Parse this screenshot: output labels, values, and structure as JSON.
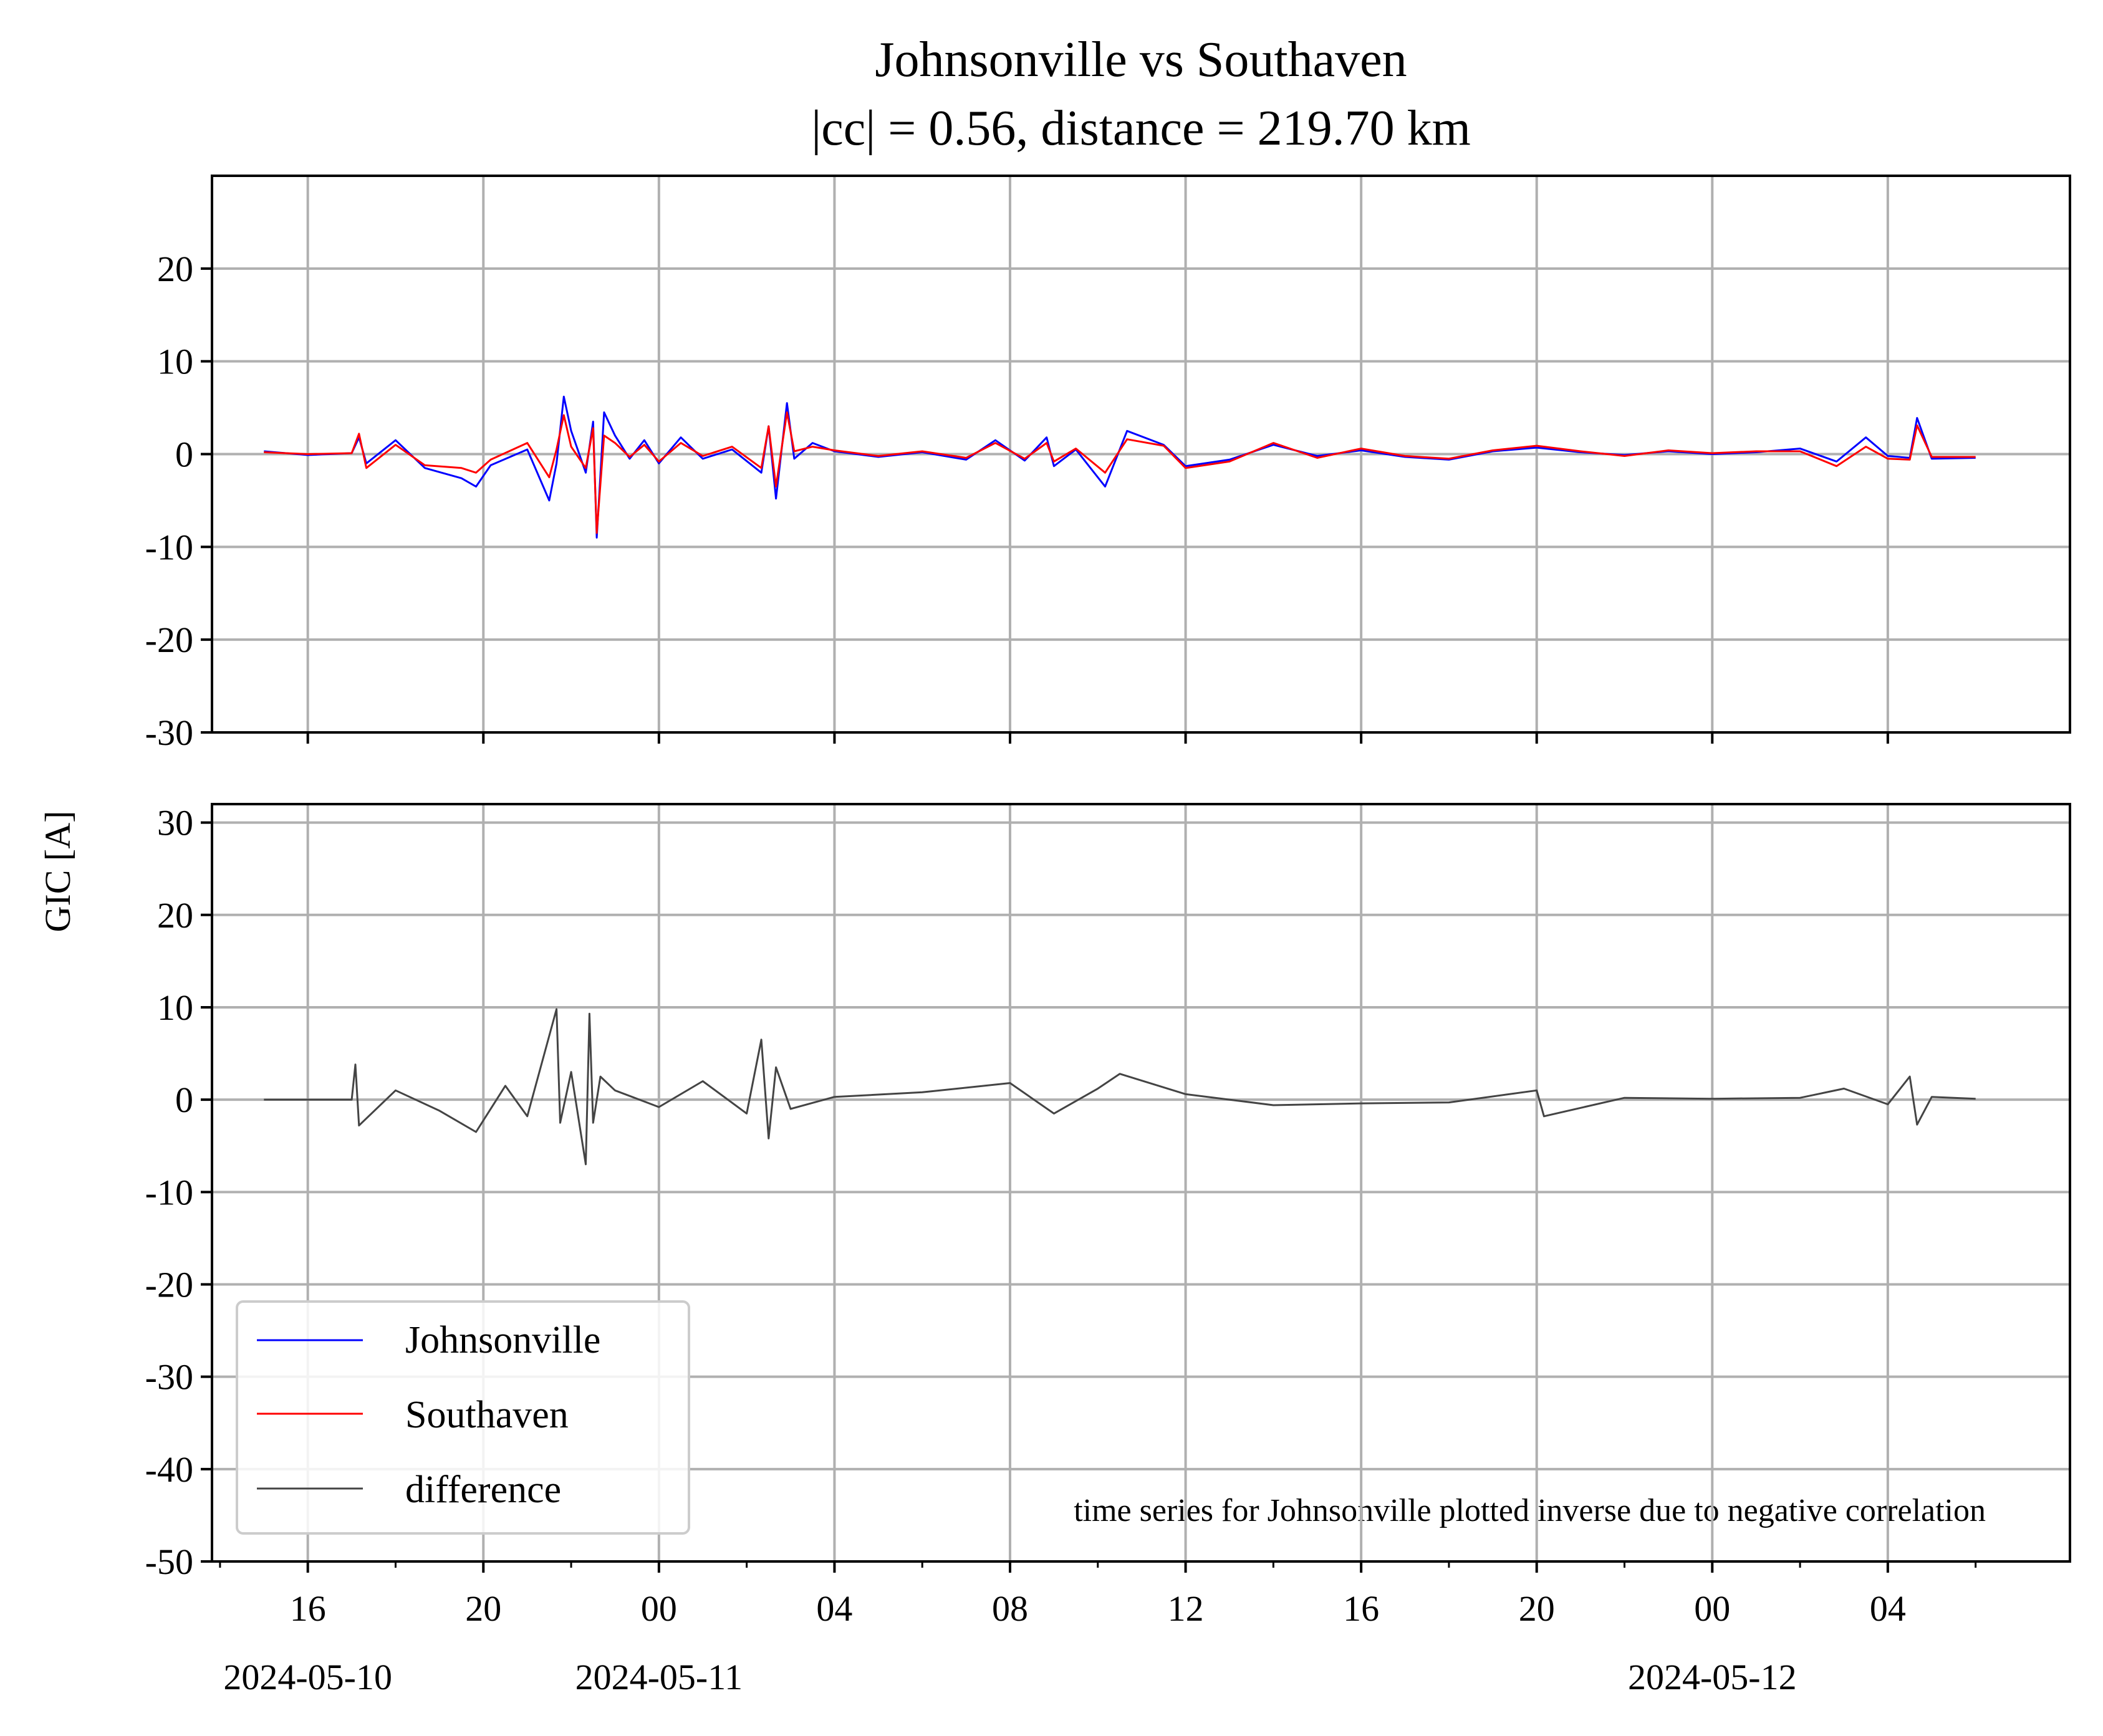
{
  "chart_data": {
    "type": "line",
    "title": "Johnsonville vs Southaven",
    "subtitle": "|cc| = 0.56, distance = 219.70 km",
    "ylabel": "GIC [A]",
    "annotation": "time series for Johnsonville plotted inverse due to negative correlation",
    "grid": true,
    "legend_position": "lower-left",
    "x_range": [
      "2024-05-10 13:49",
      "2024-05-12 08:09"
    ],
    "x_ticks": [
      {
        "t": "2024-05-10 16:00",
        "label": "16",
        "date": "2024-05-10"
      },
      {
        "t": "2024-05-10 20:00",
        "label": "20",
        "date": ""
      },
      {
        "t": "2024-05-11 00:00",
        "label": "00",
        "date": "2024-05-11"
      },
      {
        "t": "2024-05-11 04:00",
        "label": "04",
        "date": ""
      },
      {
        "t": "2024-05-11 08:00",
        "label": "08",
        "date": ""
      },
      {
        "t": "2024-05-11 12:00",
        "label": "12",
        "date": ""
      },
      {
        "t": "2024-05-11 16:00",
        "label": "16",
        "date": ""
      },
      {
        "t": "2024-05-11 20:00",
        "label": "20",
        "date": ""
      },
      {
        "t": "2024-05-12 00:00",
        "label": "00",
        "date": "2024-05-12"
      },
      {
        "t": "2024-05-12 04:00",
        "label": "04",
        "date": ""
      }
    ],
    "panels": [
      {
        "ylim": [
          -30,
          30
        ],
        "yticks": [
          -30,
          -20,
          -10,
          0,
          10,
          20
        ],
        "series": [
          {
            "name": "Johnsonville",
            "color": "#0000ff",
            "x": [
              "2024-05-10 15:00",
              "2024-05-10 16:00",
              "2024-05-10 17:00",
              "2024-05-10 17:10",
              "2024-05-10 17:20",
              "2024-05-10 18:00",
              "2024-05-10 18:40",
              "2024-05-10 19:30",
              "2024-05-10 19:50",
              "2024-05-10 20:10",
              "2024-05-10 21:00",
              "2024-05-10 21:30",
              "2024-05-10 21:40",
              "2024-05-10 21:50",
              "2024-05-10 22:00",
              "2024-05-10 22:20",
              "2024-05-10 22:30",
              "2024-05-10 22:35",
              "2024-05-10 22:45",
              "2024-05-10 23:00",
              "2024-05-10 23:20",
              "2024-05-10 23:40",
              "2024-05-11 00:00",
              "2024-05-11 00:30",
              "2024-05-11 01:00",
              "2024-05-11 01:40",
              "2024-05-11 02:20",
              "2024-05-11 02:30",
              "2024-05-11 02:40",
              "2024-05-11 02:55",
              "2024-05-11 03:05",
              "2024-05-11 03:30",
              "2024-05-11 04:00",
              "2024-05-11 05:00",
              "2024-05-11 06:00",
              "2024-05-11 07:00",
              "2024-05-11 07:40",
              "2024-05-11 08:20",
              "2024-05-11 08:50",
              "2024-05-11 09:00",
              "2024-05-11 09:30",
              "2024-05-11 10:10",
              "2024-05-11 10:40",
              "2024-05-11 11:30",
              "2024-05-11 12:00",
              "2024-05-11 13:00",
              "2024-05-11 14:00",
              "2024-05-11 15:00",
              "2024-05-11 16:00",
              "2024-05-11 17:00",
              "2024-05-11 18:00",
              "2024-05-11 19:00",
              "2024-05-11 20:00",
              "2024-05-11 21:00",
              "2024-05-11 22:00",
              "2024-05-11 23:00",
              "2024-05-12 00:00",
              "2024-05-12 01:00",
              "2024-05-12 02:00",
              "2024-05-12 02:50",
              "2024-05-12 03:30",
              "2024-05-12 04:00",
              "2024-05-12 04:30",
              "2024-05-12 04:40",
              "2024-05-12 05:00",
              "2024-05-12 06:00"
            ],
            "values": [
              0.3,
              -0.1,
              0.1,
              1.8,
              -1.0,
              1.5,
              -1.5,
              -2.6,
              -3.5,
              -1.2,
              0.5,
              -5.0,
              -1.0,
              6.2,
              2.5,
              -2.0,
              3.5,
              -9.0,
              4.5,
              2.0,
              -0.5,
              1.5,
              -1.0,
              1.8,
              -0.5,
              0.5,
              -2.0,
              3.0,
              -4.8,
              5.5,
              -0.5,
              1.2,
              0.3,
              -0.3,
              0.2,
              -0.6,
              1.5,
              -0.7,
              1.8,
              -1.3,
              0.5,
              -3.5,
              2.5,
              1.0,
              -1.3,
              -0.6,
              1.0,
              -0.2,
              0.4,
              -0.3,
              -0.6,
              0.3,
              0.7,
              0.2,
              -0.1,
              0.3,
              0.0,
              0.2,
              0.6,
              -0.8,
              1.8,
              -0.2,
              -0.4,
              3.9,
              -0.5,
              -0.4
            ]
          },
          {
            "name": "Southaven",
            "color": "#ff0000",
            "x": [
              "2024-05-10 15:00",
              "2024-05-10 16:00",
              "2024-05-10 17:00",
              "2024-05-10 17:10",
              "2024-05-10 17:20",
              "2024-05-10 18:00",
              "2024-05-10 18:40",
              "2024-05-10 19:30",
              "2024-05-10 19:50",
              "2024-05-10 20:10",
              "2024-05-10 21:00",
              "2024-05-10 21:30",
              "2024-05-10 21:40",
              "2024-05-10 21:50",
              "2024-05-10 22:00",
              "2024-05-10 22:20",
              "2024-05-10 22:30",
              "2024-05-10 22:35",
              "2024-05-10 22:45",
              "2024-05-10 23:00",
              "2024-05-10 23:20",
              "2024-05-10 23:40",
              "2024-05-11 00:00",
              "2024-05-11 00:30",
              "2024-05-11 01:00",
              "2024-05-11 01:40",
              "2024-05-11 02:20",
              "2024-05-11 02:30",
              "2024-05-11 02:40",
              "2024-05-11 02:55",
              "2024-05-11 03:05",
              "2024-05-11 03:30",
              "2024-05-11 04:00",
              "2024-05-11 05:00",
              "2024-05-11 06:00",
              "2024-05-11 07:00",
              "2024-05-11 07:40",
              "2024-05-11 08:20",
              "2024-05-11 08:50",
              "2024-05-11 09:00",
              "2024-05-11 09:30",
              "2024-05-11 10:10",
              "2024-05-11 10:40",
              "2024-05-11 11:30",
              "2024-05-11 12:00",
              "2024-05-11 13:00",
              "2024-05-11 14:00",
              "2024-05-11 15:00",
              "2024-05-11 16:00",
              "2024-05-11 17:00",
              "2024-05-11 18:00",
              "2024-05-11 19:00",
              "2024-05-11 20:00",
              "2024-05-11 21:00",
              "2024-05-11 22:00",
              "2024-05-11 23:00",
              "2024-05-12 00:00",
              "2024-05-12 01:00",
              "2024-05-12 02:00",
              "2024-05-12 02:50",
              "2024-05-12 03:30",
              "2024-05-12 04:00",
              "2024-05-12 04:30",
              "2024-05-12 04:40",
              "2024-05-12 05:00",
              "2024-05-12 06:00"
            ],
            "values": [
              0.2,
              0.0,
              0.1,
              2.2,
              -1.5,
              1.0,
              -1.2,
              -1.5,
              -2.0,
              -0.6,
              1.2,
              -2.5,
              0.5,
              4.2,
              0.8,
              -1.5,
              2.8,
              -8.5,
              2.0,
              1.2,
              -0.3,
              1.0,
              -0.8,
              1.2,
              -0.2,
              0.8,
              -1.5,
              3.0,
              -3.5,
              4.5,
              0.3,
              0.8,
              0.4,
              -0.2,
              0.3,
              -0.4,
              1.2,
              -0.5,
              1.2,
              -0.8,
              0.6,
              -2.0,
              1.6,
              0.9,
              -1.5,
              -0.8,
              1.2,
              -0.4,
              0.6,
              -0.2,
              -0.5,
              0.4,
              0.9,
              0.3,
              -0.2,
              0.4,
              0.1,
              0.3,
              0.3,
              -1.3,
              0.8,
              -0.5,
              -0.6,
              3.1,
              -0.3,
              -0.3
            ]
          }
        ]
      },
      {
        "ylim": [
          -50,
          32
        ],
        "yticks": [
          -50,
          -40,
          -30,
          -20,
          -10,
          0,
          10,
          20,
          30
        ],
        "series": [
          {
            "name": "difference",
            "color": "#444444",
            "x": [
              "2024-05-10 15:00",
              "2024-05-10 17:00",
              "2024-05-10 17:05",
              "2024-05-10 17:10",
              "2024-05-10 18:00",
              "2024-05-10 19:00",
              "2024-05-10 19:50",
              "2024-05-10 20:30",
              "2024-05-10 21:00",
              "2024-05-10 21:40",
              "2024-05-10 21:45",
              "2024-05-10 22:00",
              "2024-05-10 22:20",
              "2024-05-10 22:25",
              "2024-05-10 22:30",
              "2024-05-10 22:40",
              "2024-05-10 23:00",
              "2024-05-11 00:00",
              "2024-05-11 01:00",
              "2024-05-11 02:00",
              "2024-05-11 02:20",
              "2024-05-11 02:30",
              "2024-05-11 02:40",
              "2024-05-11 03:00",
              "2024-05-11 04:00",
              "2024-05-11 06:00",
              "2024-05-11 08:00",
              "2024-05-11 09:00",
              "2024-05-11 10:00",
              "2024-05-11 10:30",
              "2024-05-11 12:00",
              "2024-05-11 14:00",
              "2024-05-11 16:00",
              "2024-05-11 18:00",
              "2024-05-11 20:00",
              "2024-05-11 20:10",
              "2024-05-11 22:00",
              "2024-05-12 00:00",
              "2024-05-12 02:00",
              "2024-05-12 03:00",
              "2024-05-12 04:00",
              "2024-05-12 04:30",
              "2024-05-12 04:40",
              "2024-05-12 05:00",
              "2024-05-12 06:00"
            ],
            "values": [
              0.0,
              0.0,
              3.8,
              -2.8,
              1.0,
              -1.2,
              -3.5,
              1.5,
              -1.8,
              9.8,
              -2.5,
              3.0,
              -7.0,
              9.3,
              -2.5,
              2.5,
              1.0,
              -0.8,
              2.0,
              -1.5,
              6.5,
              -4.2,
              3.5,
              -1.0,
              0.3,
              0.8,
              1.8,
              -1.5,
              1.2,
              2.8,
              0.6,
              -0.6,
              -0.4,
              -0.3,
              1.0,
              -1.8,
              0.2,
              0.1,
              0.2,
              1.2,
              -0.5,
              2.5,
              -2.7,
              0.3,
              0.1
            ]
          }
        ]
      }
    ]
  }
}
